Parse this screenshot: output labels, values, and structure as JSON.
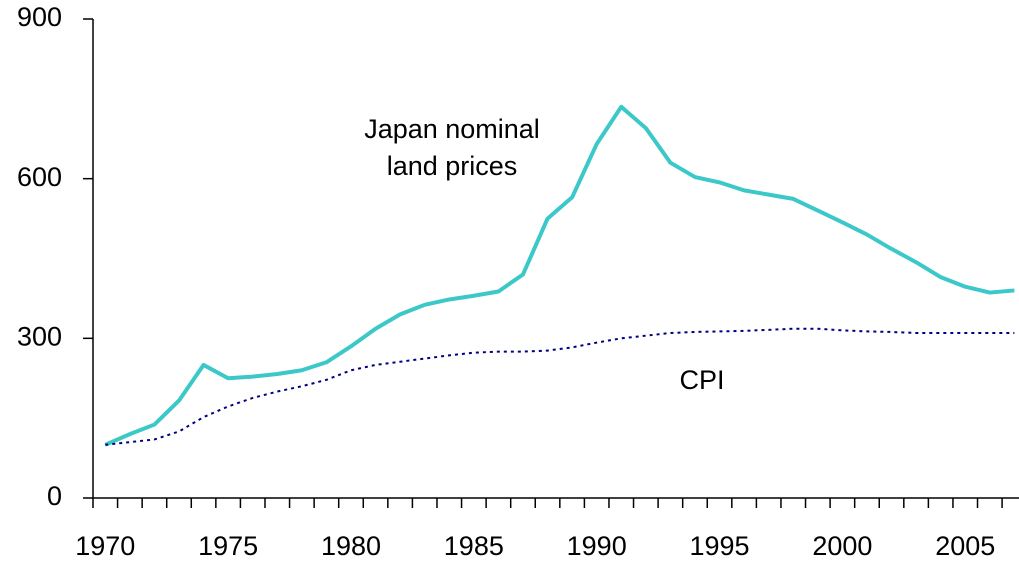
{
  "chart_data": {
    "type": "line",
    "categories": [
      "1970",
      null,
      null,
      null,
      null,
      "1975",
      null,
      null,
      null,
      null,
      "1980",
      null,
      null,
      null,
      null,
      "1985",
      null,
      null,
      null,
      null,
      "1990",
      null,
      null,
      null,
      null,
      "1995",
      null,
      null,
      null,
      null,
      "2000",
      null,
      null,
      null,
      null,
      "2005",
      null,
      null
    ],
    "series": [
      {
        "name": "Japan nominal land prices",
        "color": "#3cc8c8",
        "style": "solid",
        "values": [
          100,
          120,
          138,
          183,
          250,
          225,
          228,
          233,
          240,
          255,
          285,
          318,
          345,
          363,
          373,
          380,
          388,
          420,
          525,
          565,
          665,
          735,
          695,
          630,
          603,
          593,
          578,
          570,
          562,
          540,
          518,
          495,
          468,
          443,
          415,
          397,
          386,
          390
        ]
      },
      {
        "name": "CPI",
        "color": "#000080",
        "style": "dotted",
        "values": [
          100,
          105,
          110,
          125,
          152,
          172,
          188,
          200,
          210,
          222,
          240,
          250,
          256,
          262,
          268,
          273,
          275,
          275,
          277,
          283,
          292,
          300,
          305,
          310,
          312,
          313,
          314,
          316,
          318,
          318,
          315,
          313,
          312,
          310,
          310,
          310,
          310,
          310
        ]
      }
    ],
    "annotations": [
      "Japan nominal",
      "land prices",
      "CPI"
    ],
    "ylim": [
      0,
      900
    ],
    "yticks": [
      0,
      300,
      600,
      900
    ],
    "grid": false
  }
}
